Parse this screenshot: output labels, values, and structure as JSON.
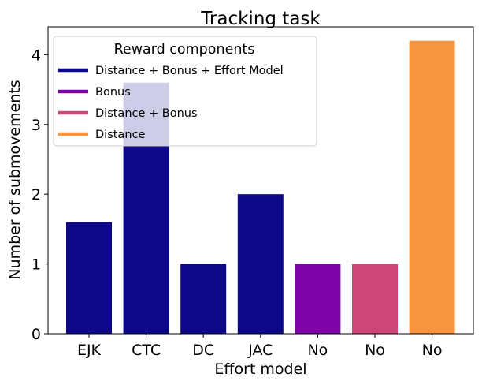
{
  "chart_data": {
    "type": "bar",
    "title": "Tracking task",
    "xlabel": "Effort model",
    "ylabel": "Number of submovements",
    "categories": [
      "EJK",
      "CTC",
      "DC",
      "JAC",
      "No",
      "No",
      "No"
    ],
    "values": [
      1.6,
      3.6,
      1.0,
      2.0,
      1.0,
      1.0,
      4.2
    ],
    "bar_series": [
      "Distance + Bonus + Effort Model",
      "Distance + Bonus + Effort Model",
      "Distance + Bonus + Effort Model",
      "Distance + Bonus + Effort Model",
      "Bonus",
      "Distance + Bonus",
      "Distance"
    ],
    "ylim": [
      0,
      4.4
    ],
    "yticks": [
      0,
      1,
      2,
      3,
      4
    ],
    "grid": false,
    "legend": {
      "title": "Reward components",
      "placement": "top-left",
      "entries": [
        {
          "name": "Distance + Bonus + Effort Model",
          "color": "#0d0887"
        },
        {
          "name": "Bonus",
          "color": "#7e03a8"
        },
        {
          "name": "Distance + Bonus",
          "color": "#cc4778"
        },
        {
          "name": "Distance",
          "color": "#f89540"
        }
      ]
    }
  }
}
